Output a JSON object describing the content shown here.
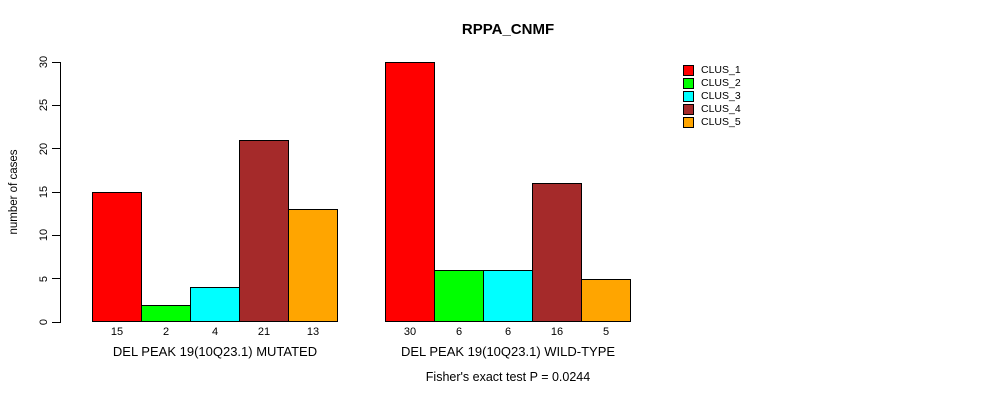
{
  "chart_data": {
    "type": "bar",
    "title": "RPPA_CNMF",
    "ylabel": "number of cases",
    "xlabel": "",
    "ylim": [
      0,
      30
    ],
    "yticks": [
      0,
      5,
      10,
      15,
      20,
      25,
      30
    ],
    "grid": false,
    "legend_position": "right",
    "legend": [
      {
        "label": "CLUS_1",
        "color": "#FF0000"
      },
      {
        "label": "CLUS_2",
        "color": "#00FF00"
      },
      {
        "label": "CLUS_3",
        "color": "#00FFFF"
      },
      {
        "label": "CLUS_4",
        "color": "#A52A2A"
      },
      {
        "label": "CLUS_5",
        "color": "#FFA500"
      }
    ],
    "groups": [
      {
        "label": "DEL PEAK 19(10Q23.1) MUTATED",
        "values": [
          15,
          2,
          4,
          21,
          13
        ]
      },
      {
        "label": "DEL PEAK 19(10Q23.1) WILD-TYPE",
        "values": [
          30,
          6,
          6,
          16,
          5
        ]
      }
    ],
    "bar_value_labels_shown": true,
    "annotation": "Fisher's exact test P = 0.0244"
  }
}
